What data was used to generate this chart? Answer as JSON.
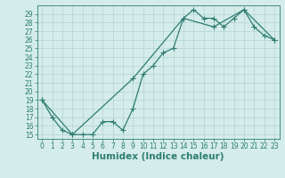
{
  "xlabel": "Humidex (Indice chaleur)",
  "xlim": [
    -0.5,
    23.5
  ],
  "ylim": [
    14.5,
    30
  ],
  "xticks": [
    0,
    1,
    2,
    3,
    4,
    5,
    6,
    7,
    8,
    9,
    10,
    11,
    12,
    13,
    14,
    15,
    16,
    17,
    18,
    19,
    20,
    21,
    22,
    23
  ],
  "yticks": [
    15,
    16,
    17,
    18,
    19,
    20,
    21,
    22,
    23,
    24,
    25,
    26,
    27,
    28,
    29
  ],
  "line1_x": [
    0,
    1,
    2,
    3,
    4,
    5,
    6,
    7,
    8,
    9,
    10,
    11,
    12,
    13,
    14,
    15,
    16,
    17,
    18,
    19,
    20,
    21,
    22,
    23
  ],
  "line1_y": [
    19,
    17,
    15.5,
    15,
    15,
    15,
    16.5,
    16.5,
    15.5,
    18,
    22,
    23,
    24.5,
    25,
    28.5,
    29.5,
    28.5,
    28.5,
    27.5,
    28.5,
    29.5,
    27.5,
    26.5,
    26
  ],
  "line2_x": [
    0,
    3,
    9,
    14,
    17,
    20,
    23
  ],
  "line2_y": [
    19,
    15,
    21.5,
    28.5,
    27.5,
    29.5,
    26
  ],
  "line_color": "#2e7d72",
  "bg_color": "#d4ecea",
  "grid_color": "#aacfcc",
  "marker": "+",
  "marker_size": 4,
  "marker_lw": 0.8,
  "linewidth": 0.9,
  "tick_fontsize": 5.5,
  "xlabel_fontsize": 7.5
}
